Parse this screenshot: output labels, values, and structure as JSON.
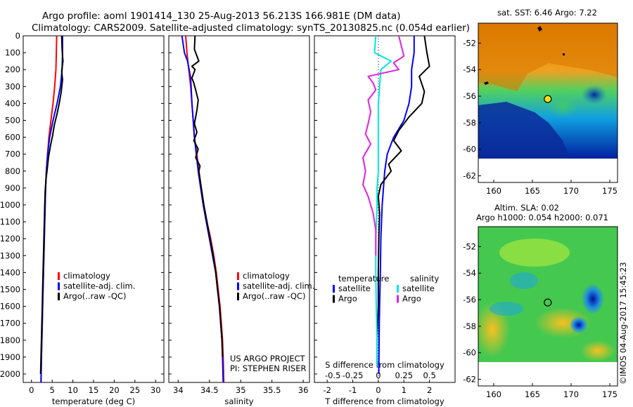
{
  "header": {
    "line1": "Argo profile: aoml 1901414_130 25-Aug-2013 56.213S 166.981E (DM data)",
    "line2": "Climatology: CARS2009. Satellite-adjusted climatology: synTS_20130825.nc (0.054d earlier)"
  },
  "colors": {
    "climatology": "#ff0000",
    "satellite": "#0000ff",
    "argo": "#000000",
    "sat_salinity": "#00e5e5",
    "argo_salinity": "#e020e0"
  },
  "chart_data": [
    {
      "type": "line",
      "panel": "temperature",
      "xlabel": "temperature (deg C)",
      "ylabel": "",
      "xlim": [
        -2,
        32
      ],
      "ylim": [
        2050,
        0
      ],
      "xticks": [
        0,
        5,
        10,
        15,
        20,
        25,
        30
      ],
      "yticks": [
        0,
        100,
        200,
        300,
        400,
        500,
        600,
        700,
        800,
        900,
        1000,
        1100,
        1200,
        1300,
        1400,
        1500,
        1600,
        1700,
        1800,
        1900,
        2000
      ],
      "legend": [
        "climatology",
        "satellite-adj. clim.",
        "Argo(..raw -QC)"
      ],
      "series": [
        {
          "name": "climatology",
          "color": "#ff0000",
          "points": [
            [
              6.1,
              0
            ],
            [
              6.0,
              100
            ],
            [
              5.9,
              200
            ],
            [
              5.6,
              300
            ],
            [
              5.2,
              400
            ],
            [
              4.7,
              500
            ],
            [
              4.2,
              600
            ],
            [
              3.9,
              700
            ],
            [
              3.6,
              800
            ],
            [
              3.4,
              900
            ],
            [
              3.3,
              1000
            ],
            [
              3.2,
              1100
            ],
            [
              3.1,
              1200
            ],
            [
              3.0,
              1300
            ],
            [
              2.9,
              1400
            ],
            [
              2.8,
              1500
            ],
            [
              2.7,
              1600
            ],
            [
              2.6,
              1700
            ],
            [
              2.5,
              1800
            ],
            [
              2.4,
              1900
            ],
            [
              2.3,
              2050
            ]
          ]
        },
        {
          "name": "satellite-adj. clim.",
          "color": "#0000ff",
          "points": [
            [
              7.5,
              0
            ],
            [
              7.5,
              100
            ],
            [
              7.4,
              200
            ],
            [
              7.0,
              300
            ],
            [
              6.2,
              400
            ],
            [
              5.2,
              500
            ],
            [
              4.4,
              600
            ],
            [
              3.9,
              700
            ],
            [
              3.6,
              800
            ],
            [
              3.4,
              900
            ],
            [
              3.3,
              1000
            ],
            [
              3.2,
              1100
            ],
            [
              3.1,
              1200
            ],
            [
              3.0,
              1300
            ],
            [
              2.9,
              1400
            ],
            [
              2.8,
              1500
            ],
            [
              2.7,
              1600
            ],
            [
              2.6,
              1700
            ],
            [
              2.5,
              1800
            ],
            [
              2.4,
              1900
            ],
            [
              2.3,
              2050
            ]
          ]
        },
        {
          "name": "Argo(..raw -QC)",
          "color": "#000000",
          "points": [
            [
              7.3,
              0
            ],
            [
              7.4,
              80
            ],
            [
              7.6,
              150
            ],
            [
              7.3,
              210
            ],
            [
              7.5,
              260
            ],
            [
              7.2,
              330
            ],
            [
              6.7,
              400
            ],
            [
              6.2,
              460
            ],
            [
              5.5,
              530
            ],
            [
              5.1,
              590
            ],
            [
              4.6,
              650
            ],
            [
              4.1,
              720
            ],
            [
              3.8,
              790
            ],
            [
              3.5,
              850
            ],
            [
              3.3,
              920
            ],
            [
              3.2,
              1000
            ],
            [
              3.1,
              1100
            ],
            [
              3.0,
              1200
            ],
            [
              2.9,
              1300
            ],
            [
              2.8,
              1400
            ],
            [
              2.7,
              1500
            ],
            [
              2.6,
              1600
            ],
            [
              2.5,
              1700
            ],
            [
              2.4,
              1800
            ],
            [
              2.3,
              1900
            ],
            [
              2.2,
              2000
            ]
          ]
        }
      ]
    },
    {
      "type": "line",
      "panel": "salinity",
      "xlabel": "salinity",
      "xlim": [
        33.85,
        36.1
      ],
      "ylim": [
        2050,
        0
      ],
      "xticks": [
        34,
        34.5,
        35,
        35.5,
        36
      ],
      "legend": [
        "climatology",
        "satellite-adj. clim.",
        "Argo(..raw -QC)"
      ],
      "series": [
        {
          "name": "climatology",
          "color": "#ff0000",
          "points": [
            [
              34.12,
              0
            ],
            [
              34.14,
              100
            ],
            [
              34.17,
              200
            ],
            [
              34.2,
              300
            ],
            [
              34.22,
              400
            ],
            [
              34.24,
              500
            ],
            [
              34.26,
              600
            ],
            [
              34.3,
              700
            ],
            [
              34.33,
              800
            ],
            [
              34.37,
              900
            ],
            [
              34.41,
              1000
            ],
            [
              34.46,
              1100
            ],
            [
              34.52,
              1200
            ],
            [
              34.57,
              1300
            ],
            [
              34.61,
              1400
            ],
            [
              34.64,
              1500
            ],
            [
              34.67,
              1600
            ],
            [
              34.69,
              1700
            ],
            [
              34.71,
              1800
            ],
            [
              34.72,
              1900
            ],
            [
              34.73,
              2050
            ]
          ]
        },
        {
          "name": "satellite-adj. clim.",
          "color": "#0000ff",
          "points": [
            [
              34.06,
              0
            ],
            [
              34.1,
              100
            ],
            [
              34.15,
              150
            ],
            [
              34.2,
              250
            ],
            [
              34.22,
              400
            ],
            [
              34.24,
              500
            ],
            [
              34.26,
              600
            ],
            [
              34.29,
              700
            ],
            [
              34.32,
              800
            ],
            [
              34.36,
              900
            ],
            [
              34.4,
              1000
            ],
            [
              34.45,
              1100
            ],
            [
              34.5,
              1200
            ],
            [
              34.55,
              1300
            ],
            [
              34.6,
              1400
            ],
            [
              34.63,
              1500
            ],
            [
              34.66,
              1600
            ],
            [
              34.68,
              1700
            ],
            [
              34.7,
              1800
            ],
            [
              34.71,
              1900
            ],
            [
              34.72,
              2050
            ]
          ]
        },
        {
          "name": "Argo(..raw -QC)",
          "color": "#000000",
          "points": [
            [
              34.27,
              0
            ],
            [
              34.26,
              80
            ],
            [
              34.33,
              150
            ],
            [
              34.22,
              180
            ],
            [
              34.27,
              200
            ],
            [
              34.22,
              250
            ],
            [
              34.25,
              280
            ],
            [
              34.28,
              320
            ],
            [
              34.32,
              380
            ],
            [
              34.3,
              440
            ],
            [
              34.26,
              520
            ],
            [
              34.3,
              570
            ],
            [
              34.25,
              620
            ],
            [
              34.32,
              670
            ],
            [
              34.28,
              720
            ],
            [
              34.35,
              770
            ],
            [
              34.33,
              800
            ],
            [
              34.37,
              900
            ],
            [
              34.41,
              1000
            ],
            [
              34.46,
              1100
            ],
            [
              34.51,
              1200
            ],
            [
              34.56,
              1300
            ],
            [
              34.6,
              1400
            ],
            [
              34.63,
              1500
            ],
            [
              34.66,
              1600
            ],
            [
              34.68,
              1700
            ],
            [
              34.7,
              1800
            ],
            [
              34.71,
              1900
            ]
          ]
        }
      ]
    },
    {
      "type": "line",
      "panel": "difference",
      "xlabel": "T difference from climatology",
      "xlabel_top": "S difference from climatology",
      "xlim": [
        -2.5,
        3
      ],
      "ylim": [
        2050,
        0
      ],
      "xticks": [
        -2,
        -1,
        0,
        1,
        2
      ],
      "xtick_labels_top": [
        "-0.5",
        "-0.25",
        "0",
        "0.25",
        "0.5"
      ],
      "legend_headers": [
        "temperature",
        "salinity"
      ],
      "legend": [
        "satellite",
        "Argo",
        "satellite",
        "Argo"
      ],
      "series": [
        {
          "name": "temperature satellite",
          "color": "#0000ff",
          "points": [
            [
              1.4,
              0
            ],
            [
              1.4,
              100
            ],
            [
              1.3,
              200
            ],
            [
              1.3,
              300
            ],
            [
              1.2,
              400
            ],
            [
              1.0,
              500
            ],
            [
              0.6,
              600
            ],
            [
              0.35,
              700
            ],
            [
              0.25,
              800
            ],
            [
              0.2,
              900
            ],
            [
              0.15,
              1000
            ],
            [
              0.1,
              1200
            ],
            [
              0.08,
              1400
            ],
            [
              0.05,
              1600
            ],
            [
              0.03,
              1800
            ],
            [
              0.02,
              2000
            ]
          ]
        },
        {
          "name": "temperature Argo",
          "color": "#000000",
          "points": [
            [
              1.8,
              0
            ],
            [
              1.9,
              100
            ],
            [
              2.0,
              180
            ],
            [
              1.6,
              240
            ],
            [
              1.8,
              330
            ],
            [
              1.7,
              400
            ],
            [
              1.2,
              480
            ],
            [
              0.8,
              560
            ],
            [
              0.6,
              620
            ],
            [
              0.9,
              680
            ],
            [
              0.4,
              760
            ],
            [
              0.5,
              800
            ],
            [
              0.1,
              880
            ],
            [
              0.0,
              950
            ],
            [
              0.05,
              1050
            ],
            [
              0.02,
              1200
            ],
            [
              0.0,
              1400
            ],
            [
              0.0,
              1600
            ],
            [
              -0.05,
              1800
            ],
            [
              -0.05,
              1950
            ]
          ]
        },
        {
          "name": "salinity satellite",
          "color": "#00e5e5",
          "points": [
            [
              -0.1,
              0
            ],
            [
              -0.15,
              100
            ],
            [
              0.5,
              150
            ],
            [
              0.1,
              200
            ],
            [
              0.05,
              300
            ],
            [
              0.0,
              400
            ],
            [
              0.0,
              500
            ],
            [
              0.0,
              600
            ],
            [
              0.0,
              700
            ],
            [
              0.0,
              800
            ],
            [
              -0.05,
              900
            ],
            [
              -0.05,
              1000
            ],
            [
              -0.1,
              1200
            ],
            [
              -0.1,
              1400
            ],
            [
              -0.08,
              1600
            ],
            [
              -0.05,
              1800
            ],
            [
              -0.05,
              1950
            ]
          ]
        },
        {
          "name": "salinity Argo",
          "color": "#e020e0",
          "points": [
            [
              0.8,
              0
            ],
            [
              0.9,
              60
            ],
            [
              1.0,
              120
            ],
            [
              0.6,
              160
            ],
            [
              0.8,
              200
            ],
            [
              -0.4,
              240
            ],
            [
              -0.2,
              280
            ],
            [
              -0.1,
              320
            ],
            [
              -0.4,
              380
            ],
            [
              -0.3,
              450
            ],
            [
              -0.4,
              520
            ],
            [
              -0.5,
              580
            ],
            [
              -0.3,
              640
            ],
            [
              -0.6,
              720
            ],
            [
              -0.5,
              800
            ],
            [
              -0.6,
              880
            ],
            [
              -0.4,
              950
            ],
            [
              -0.2,
              1050
            ],
            [
              -0.1,
              1150
            ],
            [
              -0.1,
              1300
            ]
          ]
        }
      ]
    },
    {
      "type": "heatmap",
      "panel": "map-sst",
      "title": "sat. SST: 6.46 Argo: 7.22",
      "xlim": [
        158,
        176
      ],
      "ylim": [
        -62.5,
        -50.5
      ],
      "xticks": [
        160,
        165,
        170,
        175
      ],
      "yticks": [
        -52,
        -54,
        -56,
        -58,
        -60,
        -62
      ],
      "marker": {
        "lon": 166.981,
        "lat": -56.213
      }
    },
    {
      "type": "heatmap",
      "panel": "map-sla",
      "title_line1": "Altim. SLA: 0.02",
      "title_line2": "Argo h1000: 0.054 h2000: 0.071",
      "xlim": [
        158,
        176
      ],
      "ylim": [
        -62.5,
        -50.5
      ],
      "xticks": [
        160,
        165,
        170,
        175
      ],
      "yticks": [
        -52,
        -54,
        -56,
        -58,
        -60,
        -62
      ],
      "marker": {
        "lon": 166.981,
        "lat": -56.213
      }
    }
  ],
  "footer": {
    "project_line1": "US ARGO PROJECT",
    "project_line2": "PI: STEPHEN RISER",
    "credit": "©IMOS 04-Aug-2017 15:45:23"
  }
}
